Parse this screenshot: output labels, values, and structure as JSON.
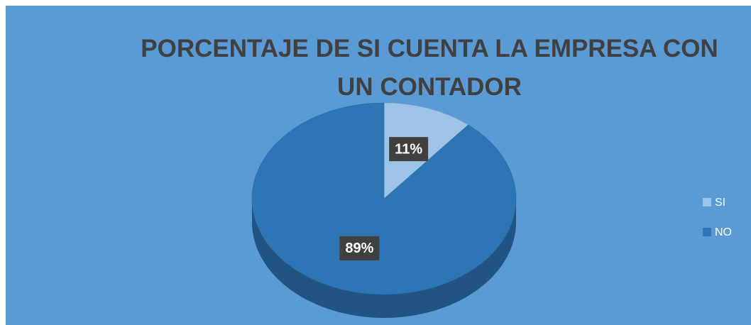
{
  "chart_data": {
    "type": "pie",
    "title": "PORCENTAJE DE SI CUENTA LA EMPRESA CON UN CONTADOR",
    "categories": [
      "SI",
      "NO"
    ],
    "values": [
      11,
      89
    ],
    "value_labels": [
      "11%",
      "89%"
    ],
    "colors": [
      "#9dc3e6",
      "#2e75b6"
    ],
    "legend": "right"
  }
}
